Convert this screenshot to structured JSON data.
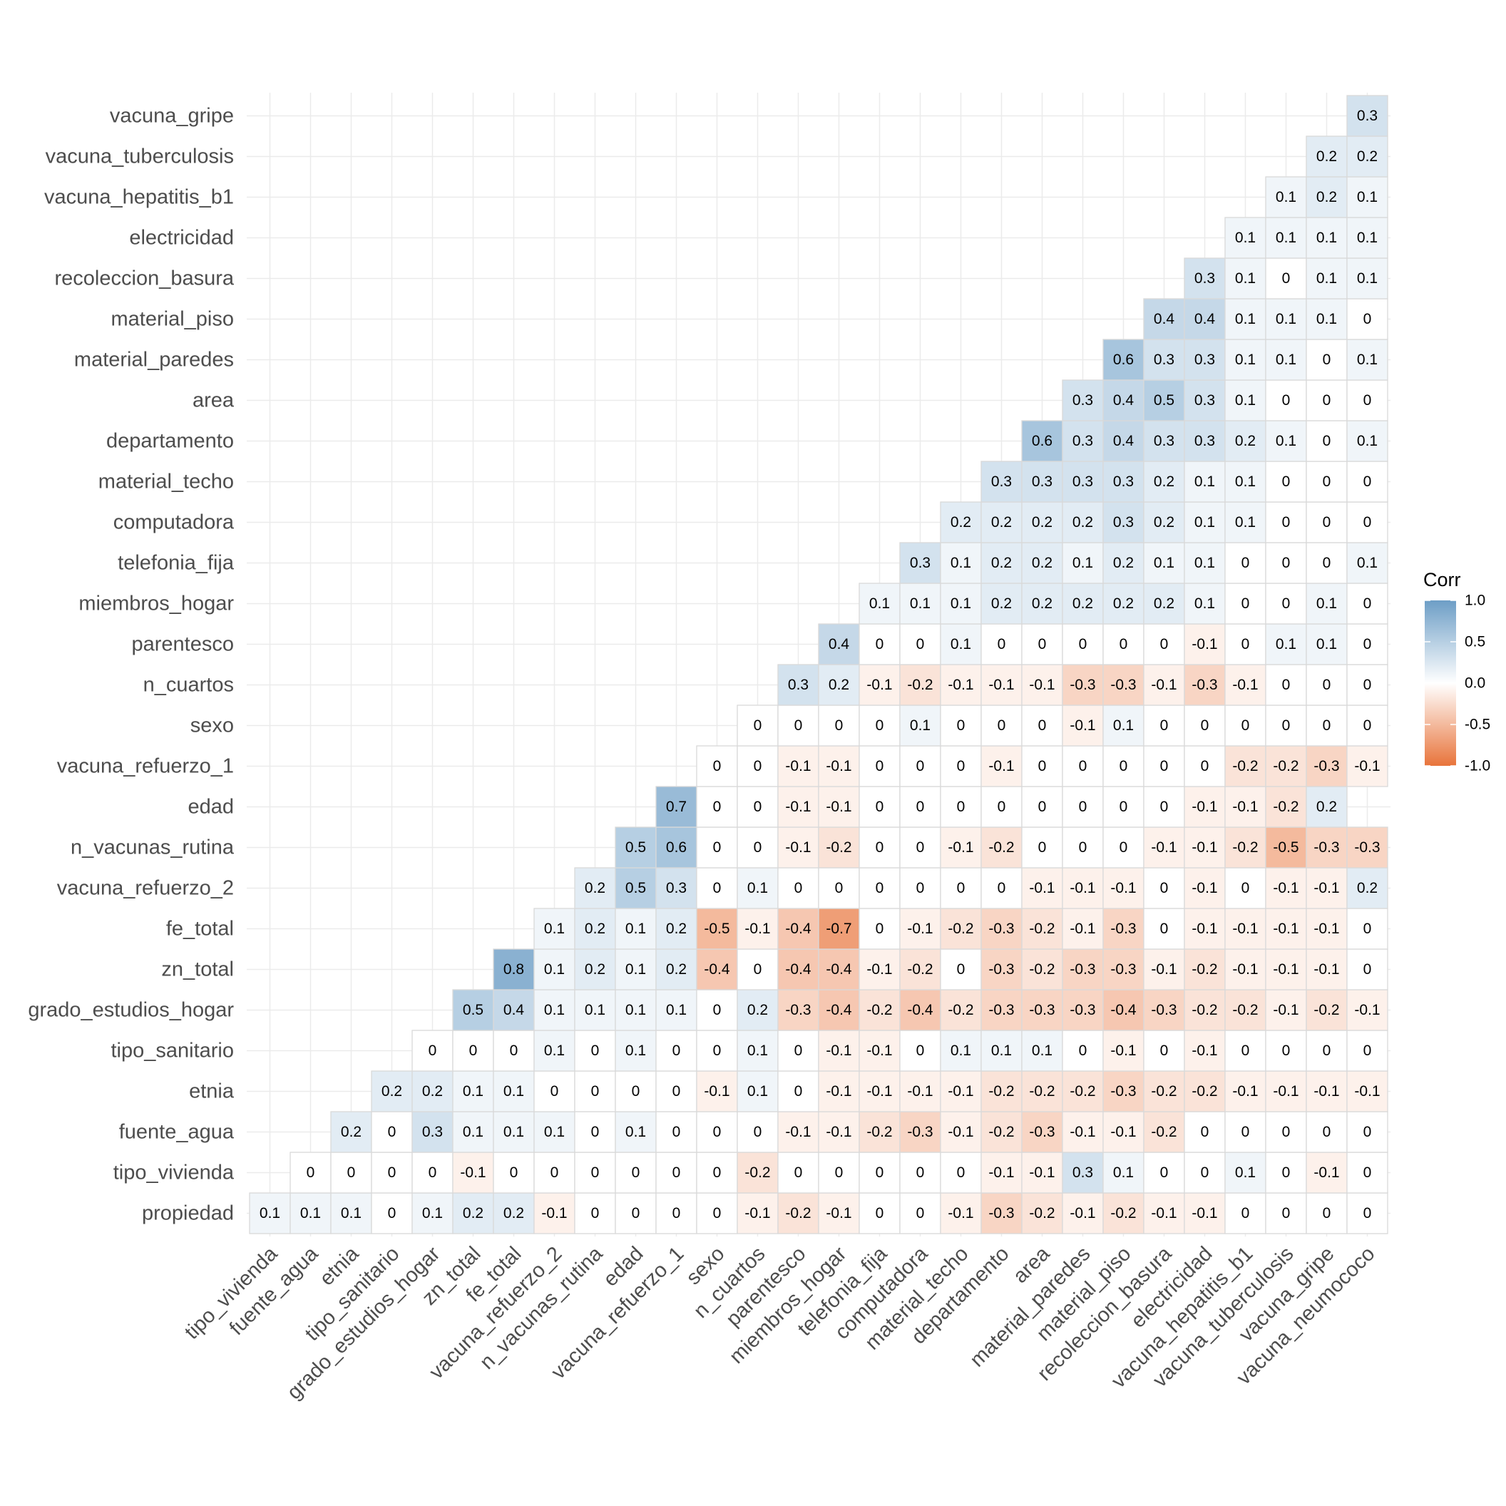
{
  "chart_data": {
    "type": "heatmap",
    "title": "",
    "xlabel": "",
    "ylabel": "",
    "x_categories": [
      "tipo_vivienda",
      "fuente_agua",
      "etnia",
      "tipo_sanitario",
      "grado_estudios_hogar",
      "zn_total",
      "fe_total",
      "vacuna_refuerzo_2",
      "n_vacunas_rutina",
      "edad",
      "vacuna_refuerzo_1",
      "sexo",
      "n_cuartos",
      "parentesco",
      "miembros_hogar",
      "telefonia_fija",
      "computadora",
      "material_techo",
      "departamento",
      "area",
      "material_paredes",
      "material_piso",
      "recoleccion_basura",
      "electricidad",
      "vacuna_hepatitis_b1",
      "vacuna_tuberculosis",
      "vacuna_gripe",
      "vacuna_neumococo"
    ],
    "y_categories": [
      "propiedad",
      "tipo_vivienda",
      "fuente_agua",
      "etnia",
      "tipo_sanitario",
      "grado_estudios_hogar",
      "zn_total",
      "fe_total",
      "vacuna_refuerzo_2",
      "n_vacunas_rutina",
      "edad",
      "vacuna_refuerzo_1",
      "sexo",
      "n_cuartos",
      "parentesco",
      "miembros_hogar",
      "telefonia_fija",
      "computadora",
      "material_techo",
      "departamento",
      "area",
      "material_paredes",
      "material_piso",
      "recoleccion_basura",
      "electricidad",
      "vacuna_hepatitis_b1",
      "vacuna_tuberculosis",
      "vacuna_gripe"
    ],
    "rows": [
      [
        0.1,
        0.1,
        0.1,
        0,
        0.1,
        0.2,
        0.2,
        -0.1,
        0,
        0,
        0,
        0,
        -0.1,
        -0.2,
        -0.1,
        0,
        0,
        -0.1,
        -0.3,
        -0.2,
        -0.1,
        -0.2,
        -0.1,
        -0.1,
        0,
        0,
        0,
        0
      ],
      [
        0,
        0,
        0,
        0,
        -0.1,
        0,
        0,
        0,
        0,
        0,
        0,
        -0.2,
        0,
        0,
        0,
        0,
        0,
        -0.1,
        -0.1,
        0.3,
        0.1,
        0,
        0,
        0.1,
        0,
        -0.1,
        0
      ],
      [
        0.2,
        0,
        0.3,
        0.1,
        0.1,
        0.1,
        0,
        0.1,
        0,
        0,
        0,
        -0.1,
        -0.1,
        -0.2,
        -0.3,
        -0.1,
        -0.2,
        -0.3,
        -0.1,
        -0.1,
        -0.2,
        0,
        0,
        0,
        0,
        0
      ],
      [
        0.2,
        0.2,
        0.1,
        0.1,
        0,
        0,
        0,
        0,
        -0.1,
        0.1,
        0,
        -0.1,
        -0.1,
        -0.1,
        -0.1,
        -0.2,
        -0.2,
        -0.2,
        -0.3,
        -0.2,
        -0.2,
        -0.1,
        -0.1,
        -0.1,
        -0.1
      ],
      [
        0,
        0,
        0,
        0.1,
        0,
        0.1,
        0,
        0,
        0.1,
        0,
        -0.1,
        -0.1,
        0,
        0.1,
        0.1,
        0.1,
        0,
        -0.1,
        0,
        -0.1,
        0,
        0,
        0,
        0
      ],
      [
        0.5,
        0.4,
        0.1,
        0.1,
        0.1,
        0.1,
        0,
        0.2,
        -0.3,
        -0.4,
        -0.2,
        -0.4,
        -0.2,
        -0.3,
        -0.3,
        -0.3,
        -0.4,
        -0.3,
        -0.2,
        -0.2,
        -0.1,
        -0.2,
        -0.1
      ],
      [
        0.8,
        0.1,
        0.2,
        0.1,
        0.2,
        -0.4,
        0,
        -0.4,
        -0.4,
        -0.1,
        -0.2,
        0,
        -0.3,
        -0.2,
        -0.3,
        -0.3,
        -0.1,
        -0.2,
        -0.1,
        -0.1,
        -0.1,
        0
      ],
      [
        0.1,
        0.2,
        0.1,
        0.2,
        -0.5,
        -0.1,
        -0.4,
        -0.7,
        0,
        -0.1,
        -0.2,
        -0.3,
        -0.2,
        -0.1,
        -0.3,
        0,
        -0.1,
        -0.1,
        -0.1,
        -0.1,
        0
      ],
      [
        0.2,
        0.5,
        0.3,
        0,
        0.1,
        0,
        0,
        0,
        0,
        0,
        0,
        -0.1,
        -0.1,
        -0.1,
        0,
        -0.1,
        0,
        -0.1,
        -0.1,
        0.2
      ],
      [
        0.5,
        0.6,
        0,
        0,
        -0.1,
        -0.2,
        0,
        0,
        -0.1,
        -0.2,
        0,
        0,
        0,
        -0.1,
        -0.1,
        -0.2,
        -0.5,
        -0.3,
        -0.3
      ],
      [
        0.7,
        0,
        0,
        -0.1,
        -0.1,
        0,
        0,
        0,
        0,
        0,
        0,
        0,
        0,
        -0.1,
        -0.1,
        -0.2,
        0.2
      ],
      [
        0,
        0,
        -0.1,
        -0.1,
        0,
        0,
        0,
        -0.1,
        0,
        0,
        0,
        0,
        0,
        -0.2,
        -0.2,
        -0.3,
        -0.1
      ],
      [
        0,
        0,
        0,
        0,
        0.1,
        0,
        0,
        0,
        -0.1,
        0.1,
        0,
        0,
        0,
        0,
        0,
        0
      ],
      [
        0.3,
        0.2,
        -0.1,
        -0.2,
        -0.1,
        -0.1,
        -0.1,
        -0.3,
        -0.3,
        -0.1,
        -0.3,
        -0.1,
        0,
        0,
        0
      ],
      [
        0.4,
        0,
        0,
        0.1,
        0,
        0,
        0,
        0,
        0,
        -0.1,
        0,
        0.1,
        0.1,
        0
      ],
      [
        0.1,
        0.1,
        0.1,
        0.2,
        0.2,
        0.2,
        0.2,
        0.2,
        0.1,
        0,
        0,
        0.1,
        0
      ],
      [
        0.3,
        0.1,
        0.2,
        0.2,
        0.1,
        0.2,
        0.1,
        0.1,
        0,
        0,
        0,
        0.1
      ],
      [
        0.2,
        0.2,
        0.2,
        0.2,
        0.3,
        0.2,
        0.1,
        0.1,
        0,
        0,
        0
      ],
      [
        0.3,
        0.3,
        0.3,
        0.3,
        0.2,
        0.1,
        0.1,
        0,
        0,
        0
      ],
      [
        0.6,
        0.3,
        0.4,
        0.3,
        0.3,
        0.2,
        0.1,
        0,
        0.1
      ],
      [
        0.3,
        0.4,
        0.5,
        0.3,
        0.1,
        0,
        0,
        0
      ],
      [
        0.6,
        0.3,
        0.3,
        0.1,
        0.1,
        0,
        0.1
      ],
      [
        0.4,
        0.4,
        0.1,
        0.1,
        0.1,
        0
      ],
      [
        0.3,
        0.1,
        0,
        0.1,
        0.1
      ],
      [
        0.1,
        0.1,
        0.1,
        0.1
      ],
      [
        0.1,
        0.2,
        0.1
      ],
      [
        0.2,
        0.2
      ],
      [
        0.3
      ]
    ],
    "legend": {
      "title": "Corr",
      "position": "right",
      "ticks": [
        "1.0",
        "0.5",
        "0.0",
        "-0.5",
        "-1.0"
      ],
      "tick_values": [
        1,
        0.5,
        0,
        -0.5,
        -1
      ]
    },
    "colors": {
      "positive": "#6d9ec6",
      "zero": "#ffffff",
      "negative": "#e8743b",
      "grid": "#ebebeb",
      "cell_border": "#d9d9d9",
      "tick_text": "#4d4d4d"
    },
    "grid": true,
    "ylim": [
      -1,
      1
    ]
  }
}
